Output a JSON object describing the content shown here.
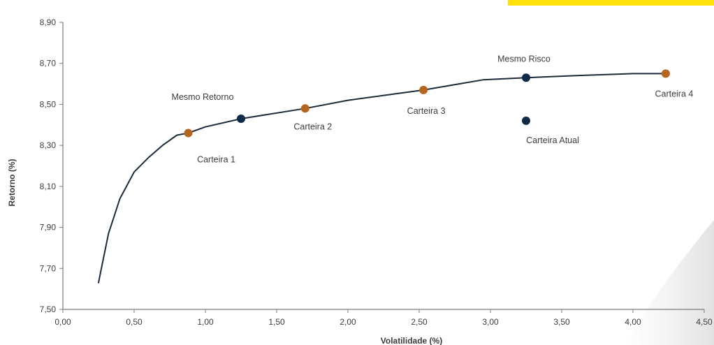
{
  "chart_data": {
    "type": "scatter",
    "xlabel": "Volatilidade (%)",
    "ylabel": "Retorno (%)",
    "xlim": [
      0,
      4.5
    ],
    "ylim": [
      7.5,
      8.9
    ],
    "x_ticks": [
      "0,00",
      "0,50",
      "1,00",
      "1,50",
      "2,00",
      "2,50",
      "3,00",
      "3,50",
      "4,00",
      "4,50"
    ],
    "y_ticks": [
      "7,50",
      "7,70",
      "7,90",
      "8,10",
      "8,30",
      "8,50",
      "8,70",
      "8,90"
    ],
    "grid": false,
    "frontier": {
      "x": [
        0.25,
        0.27,
        0.32,
        0.4,
        0.5,
        0.6,
        0.7,
        0.8,
        0.88,
        1.0,
        1.25,
        1.7,
        2.0,
        2.53,
        2.95,
        3.25,
        3.6,
        4.0,
        4.23
      ],
      "y": [
        7.63,
        7.7,
        7.87,
        8.04,
        8.17,
        8.24,
        8.3,
        8.35,
        8.36,
        8.39,
        8.43,
        8.48,
        8.52,
        8.57,
        8.62,
        8.63,
        8.64,
        8.65,
        8.65
      ]
    },
    "points": [
      {
        "label": "Carteira 1",
        "x": 0.88,
        "y": 8.36,
        "color": "#b5651d"
      },
      {
        "label": "Mesmo Retorno",
        "x": 1.25,
        "y": 8.43,
        "color": "#0f2a47"
      },
      {
        "label": "Carteira 2",
        "x": 1.7,
        "y": 8.48,
        "color": "#b5651d"
      },
      {
        "label": "Carteira 3",
        "x": 2.53,
        "y": 8.57,
        "color": "#b5651d"
      },
      {
        "label": "Mesmo Risco",
        "x": 3.25,
        "y": 8.63,
        "color": "#0f2a47"
      },
      {
        "label": "Carteira Atual",
        "x": 3.25,
        "y": 8.42,
        "color": "#0f2a47"
      },
      {
        "label": "Carteira 4",
        "x": 4.23,
        "y": 8.65,
        "color": "#b5651d"
      }
    ],
    "line_color": "#1c2a3a"
  }
}
